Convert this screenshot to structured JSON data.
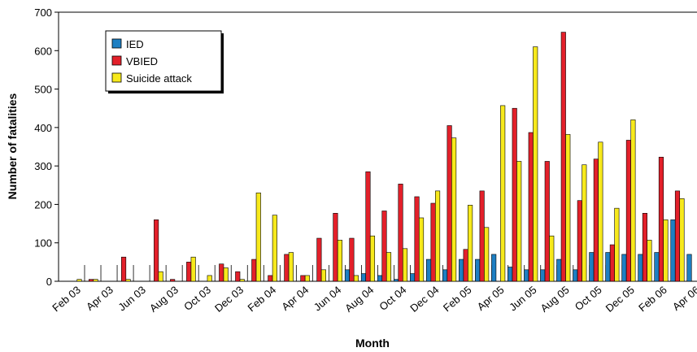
{
  "chart_data": {
    "type": "bar",
    "title": "",
    "xlabel": "Month",
    "ylabel": "Number of fatalities",
    "ylim": [
      0,
      700
    ],
    "yticks": [
      0,
      100,
      200,
      300,
      400,
      500,
      600,
      700
    ],
    "grid": false,
    "legend_position": "top-left",
    "months": [
      "Feb 03",
      "Mar 03",
      "Apr 03",
      "May 03",
      "Jun 03",
      "Jul 03",
      "Aug 03",
      "Sep 03",
      "Oct 03",
      "Nov 03",
      "Dec 03",
      "Jan 04",
      "Feb 04",
      "Mar 04",
      "Apr 04",
      "May 04",
      "Jun 04",
      "Jul 04",
      "Aug 04",
      "Sep 04",
      "Oct 04",
      "Nov 04",
      "Dec 04",
      "Jan 05",
      "Feb 05",
      "Mar 05",
      "Apr 05",
      "May 05",
      "Jun 05",
      "Jul 05",
      "Aug 05",
      "Sep 05",
      "Oct 05",
      "Nov 05",
      "Dec 05",
      "Jan 06",
      "Feb 06",
      "Mar 06",
      "Apr 06"
    ],
    "x_tick_labels": [
      "Feb 03",
      "Apr 03",
      "Jun 03",
      "Aug 03",
      "Oct 03",
      "Dec 03",
      "Feb 04",
      "Apr 04",
      "Jun 04",
      "Aug 04",
      "Oct 04",
      "Dec 04",
      "Feb 05",
      "Apr 05",
      "Jun 05",
      "Aug 05",
      "Oct 05",
      "Dec 05",
      "Feb 06",
      "Apr 06"
    ],
    "series": [
      {
        "name": "IED",
        "color": "#1e7fc2",
        "values": [
          0,
          0,
          0,
          0,
          0,
          0,
          0,
          0,
          0,
          0,
          0,
          0,
          0,
          0,
          0,
          0,
          0,
          30,
          20,
          15,
          5,
          20,
          57,
          30,
          57,
          57,
          70,
          37,
          30,
          30,
          57,
          30,
          75,
          75,
          70,
          70,
          75,
          160,
          70
        ]
      },
      {
        "name": "VBIED",
        "color": "#e3202a",
        "values": [
          0,
          5,
          0,
          63,
          0,
          160,
          5,
          50,
          0,
          45,
          25,
          57,
          15,
          70,
          15,
          112,
          177,
          112,
          285,
          183,
          253,
          220,
          203,
          405,
          83,
          235,
          0,
          450,
          387,
          312,
          648,
          210,
          318,
          95,
          367,
          177,
          323,
          235,
          0
        ]
      },
      {
        "name": "Suicide attack",
        "color": "#f7e91c",
        "values": [
          5,
          5,
          0,
          5,
          0,
          25,
          0,
          63,
          15,
          35,
          5,
          230,
          172,
          75,
          15,
          30,
          107,
          15,
          118,
          75,
          85,
          165,
          235,
          373,
          198,
          140,
          457,
          312,
          610,
          118,
          382,
          303,
          362,
          190,
          420,
          107,
          160,
          215,
          0
        ]
      }
    ]
  }
}
